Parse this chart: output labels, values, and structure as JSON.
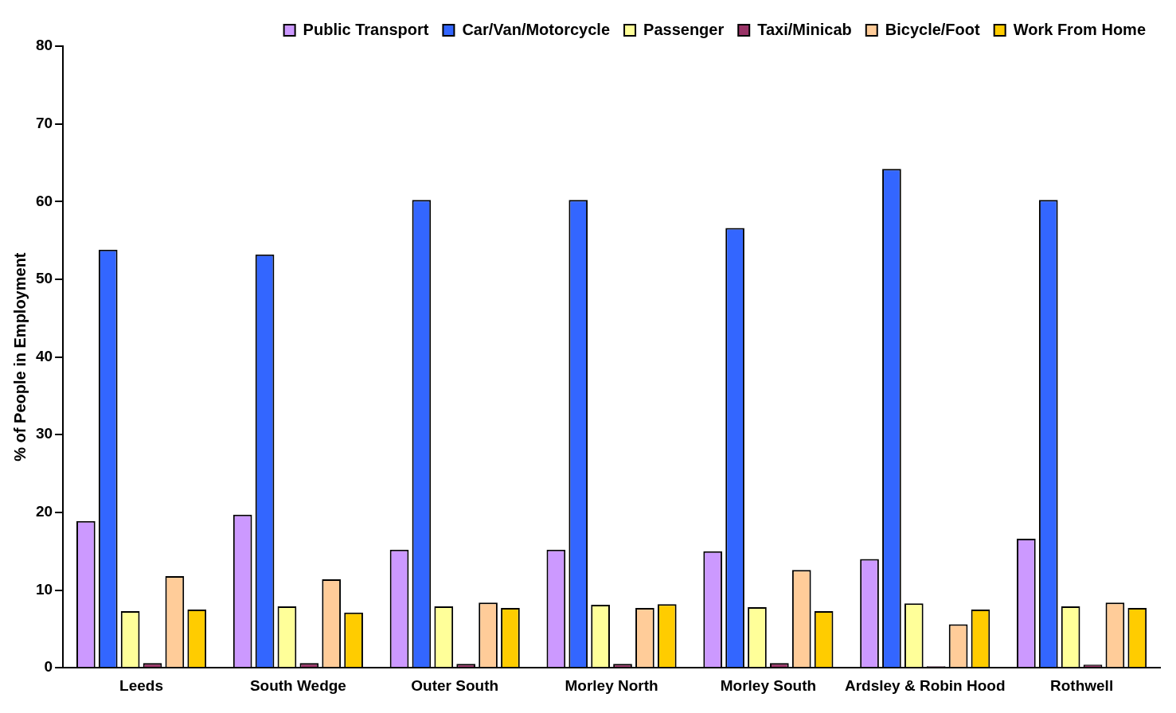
{
  "chart_data": {
    "type": "bar",
    "ylabel": "% of People in Employment",
    "categories": [
      "Leeds",
      "South Wedge",
      "Outer South",
      "Morley North",
      "Morley South",
      "Ardsley & Robin Hood",
      "Rothwell"
    ],
    "series": [
      {
        "name": "Public Transport",
        "color": "#cc99ff",
        "values": [
          18.9,
          19.7,
          15.2,
          15.2,
          15.0,
          14.0,
          16.6
        ]
      },
      {
        "name": "Car/Van/Motorcycle",
        "color": "#3366ff",
        "values": [
          53.8,
          53.2,
          60.2,
          60.2,
          56.6,
          64.2,
          60.2
        ]
      },
      {
        "name": "Passenger",
        "color": "#ffff99",
        "values": [
          7.3,
          7.9,
          7.9,
          8.1,
          7.8,
          8.3,
          7.9
        ]
      },
      {
        "name": "Taxi/Minicab",
        "color": "#993366",
        "values": [
          0.6,
          0.6,
          0.5,
          0.5,
          0.6,
          0.2,
          0.4
        ]
      },
      {
        "name": "Bicycle/Foot",
        "color": "#ffcc99",
        "values": [
          11.8,
          11.4,
          8.4,
          7.7,
          12.6,
          5.6,
          8.4
        ]
      },
      {
        "name": "Work From Home",
        "color": "#ffcc00",
        "values": [
          7.5,
          7.1,
          7.7,
          8.2,
          7.3,
          7.5,
          7.7
        ]
      }
    ],
    "ylim": [
      0,
      80
    ],
    "yticks": [
      0,
      10,
      20,
      30,
      40,
      50,
      60,
      70,
      80
    ],
    "grid": false,
    "legend": "top right"
  }
}
